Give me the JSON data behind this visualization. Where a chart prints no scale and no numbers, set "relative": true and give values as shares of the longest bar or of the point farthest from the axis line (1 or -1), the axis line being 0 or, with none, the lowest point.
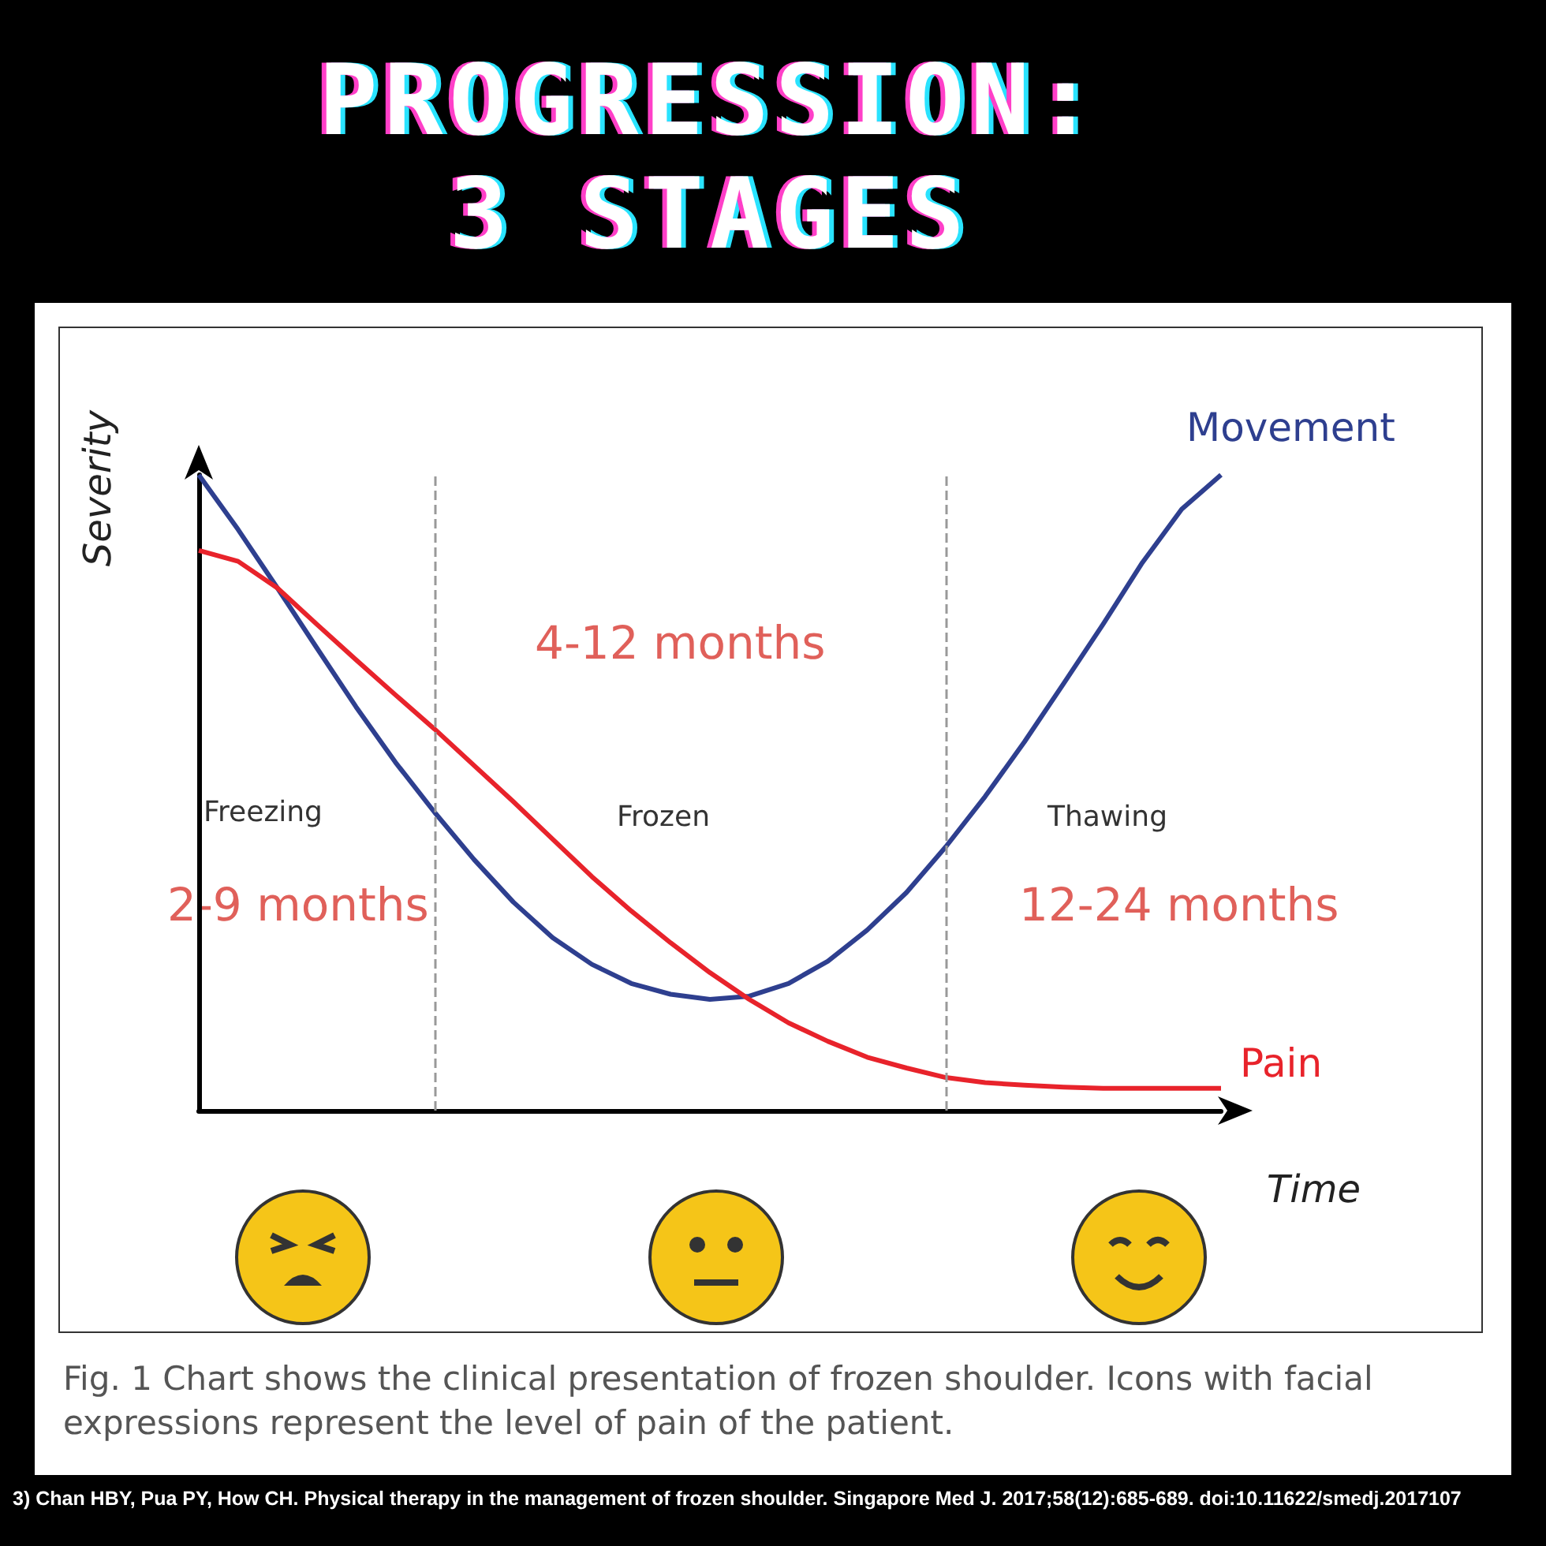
{
  "chart_data": {
    "type": "line",
    "title": "PROGRESSION:\n3 STAGES",
    "xlabel": "Time",
    "ylabel": "Severity",
    "relative": true,
    "legend": false,
    "grid": false,
    "marker": "none",
    "line_style": "solid",
    "categories": [
      null,
      null,
      null,
      null,
      null,
      null,
      null,
      null,
      null,
      null,
      null,
      null,
      null,
      null,
      null,
      null,
      null,
      null,
      null,
      null,
      null,
      null,
      null,
      null,
      null,
      null,
      null
    ],
    "series": [
      {
        "name": "Movement",
        "color": "#2e3f8f",
        "values": [
          1.0,
          0.914,
          0.822,
          0.728,
          0.635,
          0.548,
          0.469,
          0.395,
          0.328,
          0.272,
          0.23,
          0.2,
          0.183,
          0.175,
          0.18,
          0.2,
          0.235,
          0.284,
          0.343,
          0.415,
          0.494,
          0.58,
          0.672,
          0.765,
          0.862,
          0.946,
          1.0
        ]
      },
      {
        "name": "Pain",
        "color": "#e8232b",
        "values": [
          0.881,
          0.864,
          0.822,
          0.765,
          0.709,
          0.654,
          0.6,
          0.543,
          0.486,
          0.427,
          0.368,
          0.314,
          0.264,
          0.217,
          0.175,
          0.138,
          0.109,
          0.084,
          0.067,
          0.052,
          0.044,
          0.04,
          0.037,
          0.035,
          0.035,
          0.035,
          0.035
        ]
      }
    ],
    "annotations": [
      "Freezing",
      "Frozen",
      "Thawing",
      "2-9 months",
      "4-12 months",
      "12-24 months",
      "Fig. 1 Chart shows the clinical presentation of frozen shoulder. Icons with facial expressions represent the level of pain of the patient.",
      "3) Chan HBY, Pua PY, How CH. Physical therapy in the management of frozen shoulder. Singapore Med J. 2017;58(12):685-689. doi:10.11622/smedj.2017107"
    ]
  }
}
